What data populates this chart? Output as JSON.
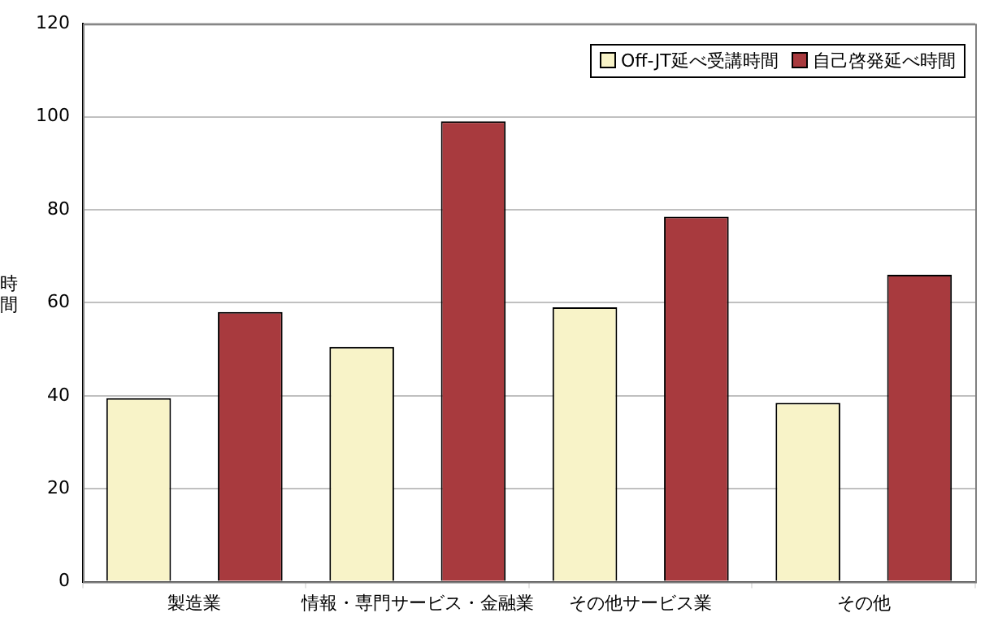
{
  "chart_data": {
    "type": "bar",
    "ylabel": "時間",
    "categories": [
      "製造業",
      "情報・専門サービス・金融業",
      "その他サービス業",
      "その他"
    ],
    "series": [
      {
        "name": "Off-JT延べ受講時間",
        "color": "#f8f3c8",
        "values": [
          39.5,
          50.5,
          59,
          38.5
        ]
      },
      {
        "name": "自己啓発延べ時間",
        "color": "#a83a3e",
        "values": [
          58,
          99,
          78.5,
          66
        ]
      }
    ],
    "ylim": [
      0,
      120
    ],
    "yticks": [
      0,
      20,
      40,
      60,
      80,
      100,
      120
    ],
    "grid": "y",
    "legend": "top right"
  }
}
